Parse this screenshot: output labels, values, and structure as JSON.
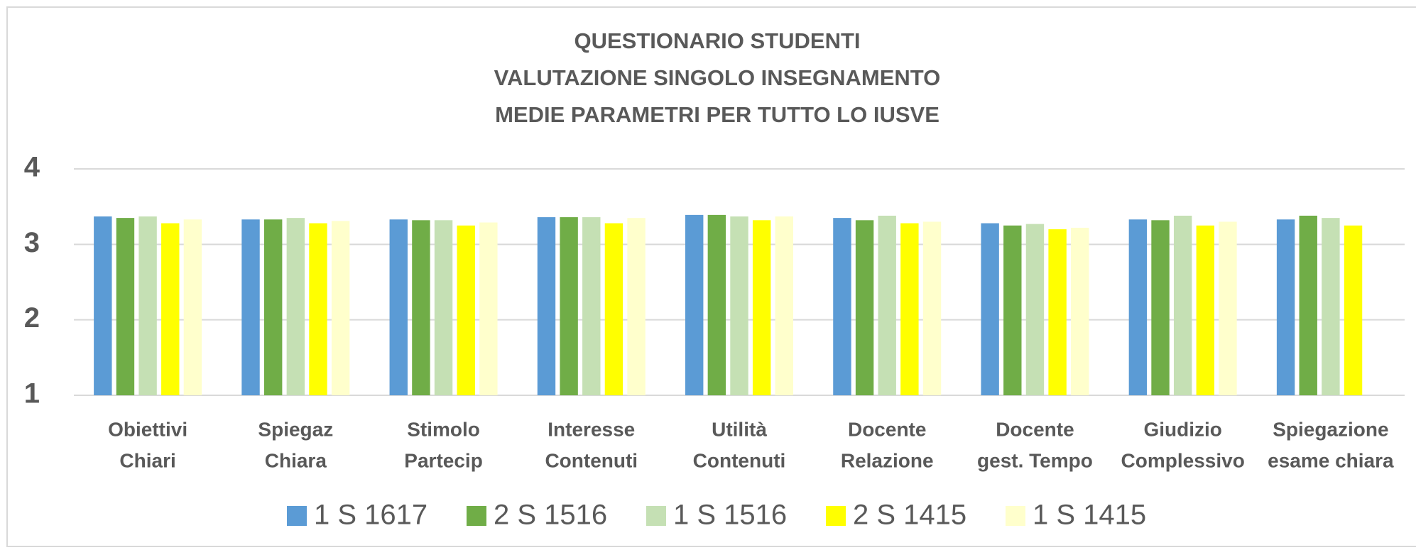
{
  "chart_data": {
    "type": "bar",
    "title": [
      "QUESTIONARIO STUDENTI",
      "VALUTAZIONE SINGOLO INSEGNAMENTO",
      "MEDIE PARAMETRI PER TUTTO LO IUSVE"
    ],
    "categories": [
      [
        "Obiettivi",
        "Chiari"
      ],
      [
        "Spiegaz",
        "Chiara"
      ],
      [
        "Stimolo",
        "Partecip"
      ],
      [
        "Interesse",
        "Contenuti"
      ],
      [
        "Utilità",
        "Contenuti"
      ],
      [
        "Docente",
        "Relazione"
      ],
      [
        "Docente",
        "gest. Tempo"
      ],
      [
        "Giudizio",
        "Complessivo"
      ],
      [
        "Spiegazione",
        "esame chiara"
      ]
    ],
    "series": [
      {
        "name": "1 S 1617",
        "color": "#5b9bd5",
        "values": [
          3.37,
          3.33,
          3.33,
          3.36,
          3.39,
          3.35,
          3.28,
          3.33,
          3.33
        ]
      },
      {
        "name": "2 S 1516",
        "color": "#70ad47",
        "values": [
          3.35,
          3.33,
          3.32,
          3.36,
          3.39,
          3.32,
          3.25,
          3.32,
          3.38
        ]
      },
      {
        "name": "1 S 1516",
        "color": "#c5e0b4",
        "values": [
          3.37,
          3.35,
          3.32,
          3.36,
          3.37,
          3.38,
          3.27,
          3.38,
          3.35
        ]
      },
      {
        "name": "2 S 1415",
        "color": "#ffff00",
        "values": [
          3.28,
          3.28,
          3.25,
          3.28,
          3.32,
          3.28,
          3.2,
          3.25,
          3.25
        ]
      },
      {
        "name": "1 S 1415",
        "color": "#ffffcc",
        "values": [
          3.33,
          3.31,
          3.29,
          3.35,
          3.37,
          3.3,
          3.22,
          3.3,
          null
        ]
      }
    ],
    "ylim": [
      1,
      4
    ],
    "yticks": [
      1,
      2,
      3,
      4
    ],
    "grid": true,
    "legend": "bottom"
  }
}
